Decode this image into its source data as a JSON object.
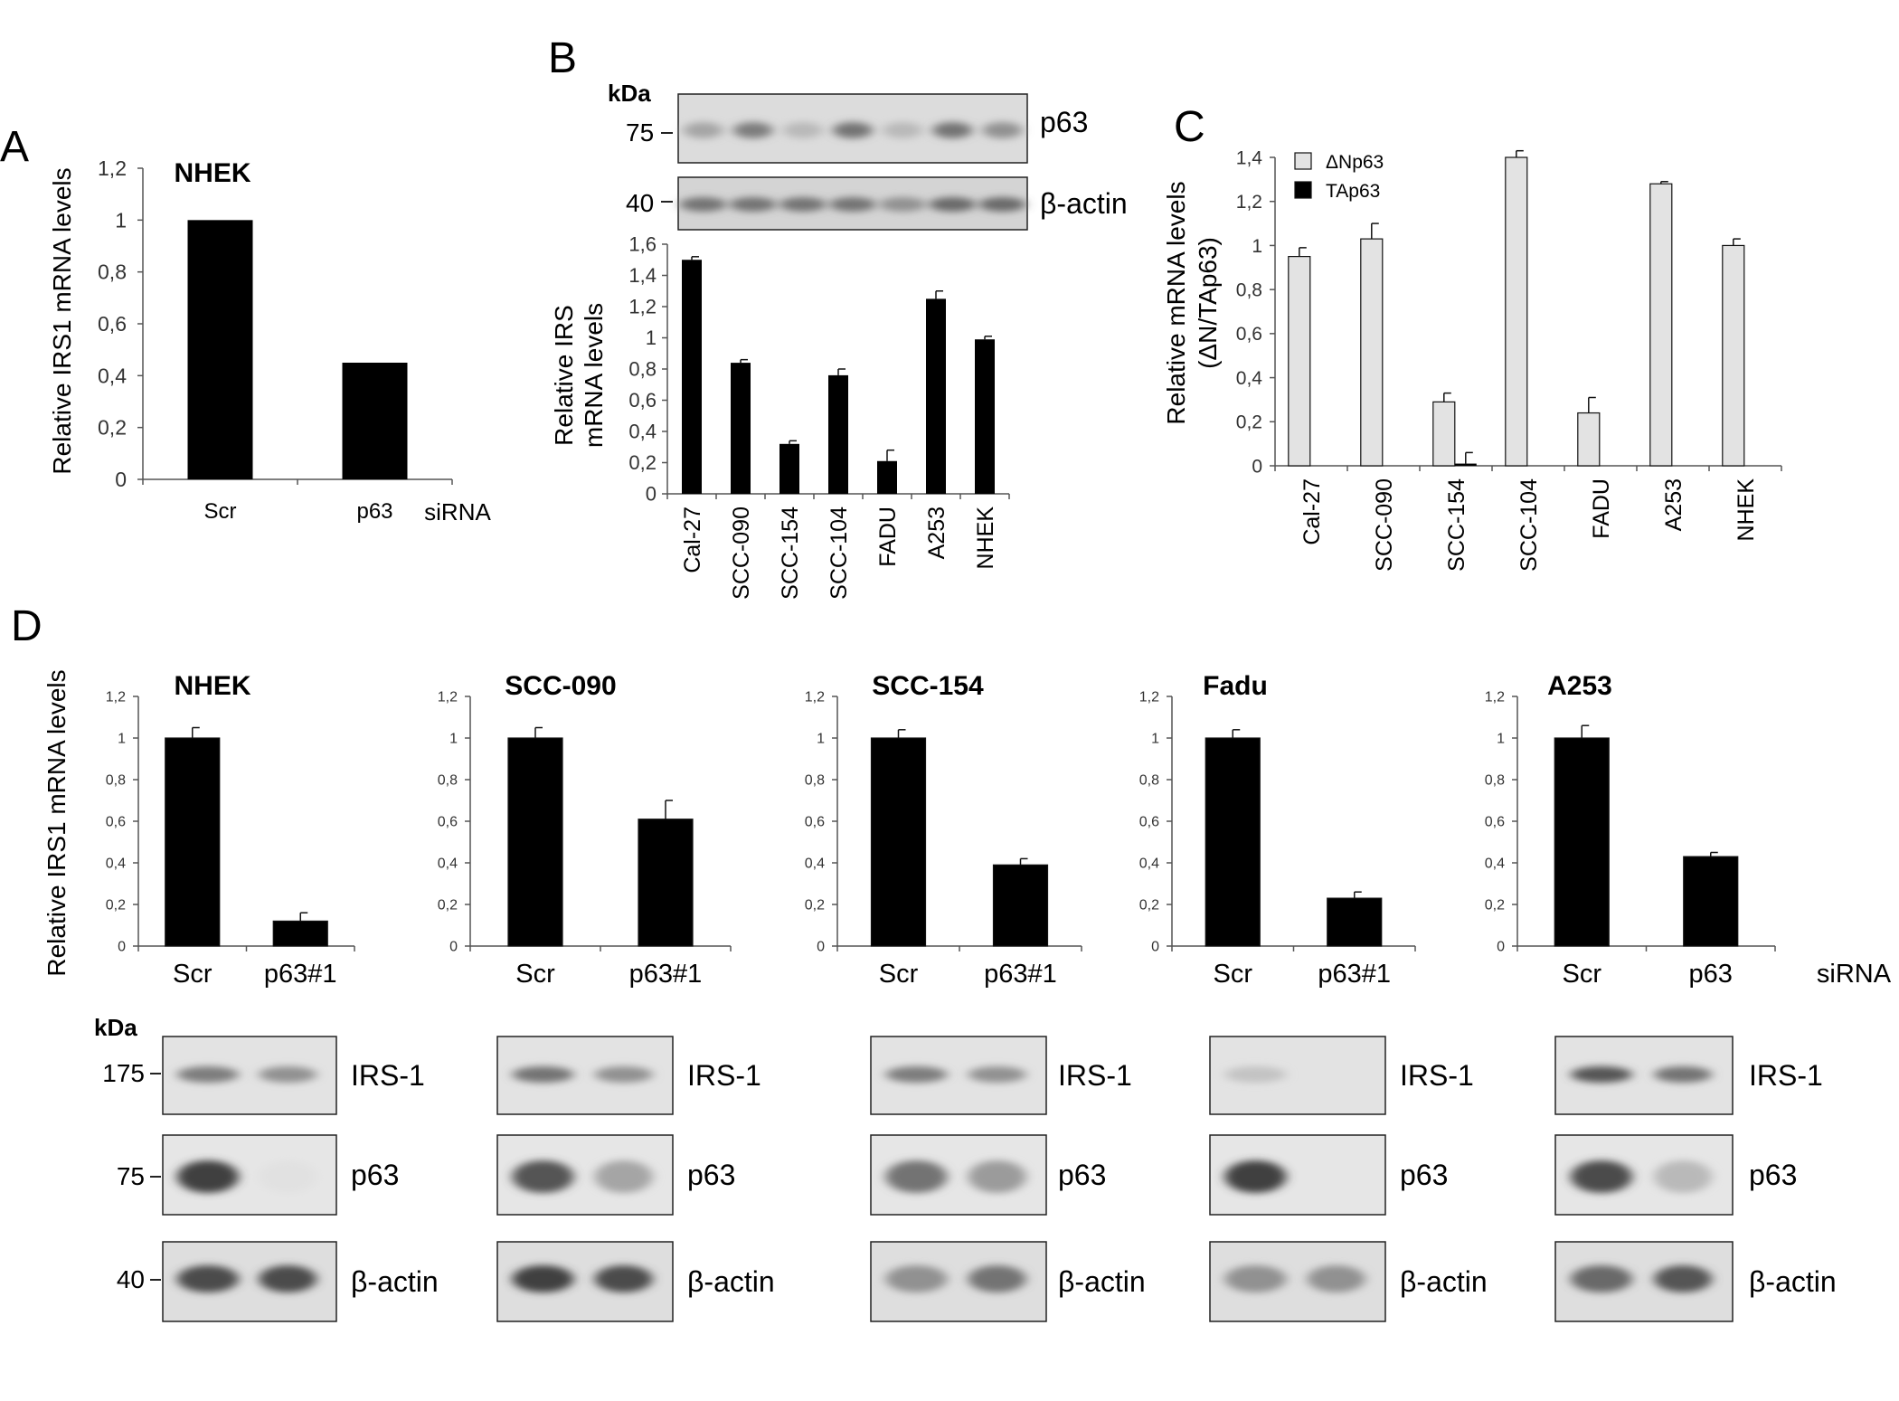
{
  "panel_labels": [
    "A",
    "B",
    "C",
    "D"
  ],
  "kda_label": "kDa",
  "chart_data": [
    {
      "id": "A",
      "type": "bar",
      "title": "NHEK",
      "categories": [
        "Scr",
        "p63"
      ],
      "values": [
        1.0,
        0.45
      ],
      "ylabel": "Relative IRS1 mRNA levels",
      "xlabel": "siRNA",
      "ylim": [
        0,
        1.2
      ],
      "yticks": [
        "0",
        "0,2",
        "0,4",
        "0,6",
        "0,8",
        "1",
        "1,2"
      ],
      "bar_color": "#000000"
    },
    {
      "id": "B",
      "type": "bar",
      "categories": [
        "Cal-27",
        "SCC-090",
        "SCC-154",
        "SCC-104",
        "FADU",
        "A253",
        "NHEK"
      ],
      "values": [
        1.5,
        0.84,
        0.32,
        0.76,
        0.21,
        1.25,
        0.99
      ],
      "errors": [
        0.02,
        0.02,
        0.02,
        0.04,
        0.07,
        0.05,
        0.02
      ],
      "ylabel_lines": [
        "Relative IRS",
        "mRNA levels"
      ],
      "ylim": [
        0,
        1.6
      ],
      "yticks": [
        "0",
        "0,2",
        "0,4",
        "0,6",
        "0,8",
        "1",
        "1,2",
        "1,4",
        "1,6"
      ],
      "bar_color": "#000000"
    },
    {
      "id": "C",
      "type": "bar",
      "categories": [
        "Cal-27",
        "SCC-090",
        "SCC-154",
        "SCC-104",
        "FADU",
        "A253",
        "NHEK"
      ],
      "series": [
        {
          "name": "ΔNp63",
          "values": [
            0.95,
            1.03,
            0.29,
            1.4,
            0.24,
            1.28,
            1.0
          ],
          "errors": [
            0.04,
            0.07,
            0.04,
            0.03,
            0.07,
            0.01,
            0.03
          ],
          "color": "#e3e3e3"
        },
        {
          "name": "TAp63",
          "values": [
            0,
            0,
            0.01,
            0,
            0,
            0,
            0
          ],
          "errors": [
            0,
            0,
            0.05,
            0,
            0,
            0,
            0
          ],
          "color": "#000000"
        }
      ],
      "ylabel_lines": [
        "Relative mRNA levels",
        "(ΔN/TAp63)"
      ],
      "ylim": [
        0,
        1.4
      ],
      "yticks": [
        "0",
        "0,2",
        "0,4",
        "0,6",
        "0,8",
        "1",
        "1,2",
        "1,4"
      ],
      "legend": "top-left"
    },
    {
      "id": "D-NHEK",
      "type": "bar",
      "title": "NHEK",
      "categories": [
        "Scr",
        "p63#1"
      ],
      "values": [
        1.0,
        0.12
      ],
      "errors": [
        0.05,
        0.04
      ],
      "ylim": [
        0,
        1.2
      ],
      "yticks": [
        "0",
        "0,2",
        "0,4",
        "0,6",
        "0,8",
        "1",
        "1,2"
      ]
    },
    {
      "id": "D-SCC-090",
      "type": "bar",
      "title": "SCC-090",
      "categories": [
        "Scr",
        "p63#1"
      ],
      "values": [
        1.0,
        0.61
      ],
      "errors": [
        0.05,
        0.09
      ],
      "ylim": [
        0,
        1.2
      ],
      "yticks": [
        "0",
        "0,2",
        "0,4",
        "0,6",
        "0,8",
        "1",
        "1,2"
      ]
    },
    {
      "id": "D-SCC-154",
      "type": "bar",
      "title": "SCC-154",
      "categories": [
        "Scr",
        "p63#1"
      ],
      "values": [
        1.0,
        0.39
      ],
      "errors": [
        0.04,
        0.03
      ],
      "ylim": [
        0,
        1.2
      ],
      "yticks": [
        "0",
        "0,2",
        "0,4",
        "0,6",
        "0,8",
        "1",
        "1,2"
      ]
    },
    {
      "id": "D-Fadu",
      "type": "bar",
      "title": "Fadu",
      "categories": [
        "Scr",
        "p63#1"
      ],
      "values": [
        1.0,
        0.23
      ],
      "errors": [
        0.04,
        0.03
      ],
      "ylim": [
        0,
        1.2
      ],
      "yticks": [
        "0",
        "0,2",
        "0,4",
        "0,6",
        "0,8",
        "1",
        "1,2"
      ]
    },
    {
      "id": "D-A253",
      "type": "bar",
      "title": "A253",
      "categories": [
        "Scr",
        "p63"
      ],
      "values": [
        1.0,
        0.43
      ],
      "errors": [
        0.06,
        0.02
      ],
      "ylim": [
        0,
        1.2
      ],
      "yticks": [
        "0",
        "0,2",
        "0,4",
        "0,6",
        "0,8",
        "1",
        "1,2"
      ],
      "xlabel": "siRNA"
    }
  ],
  "panel_D": {
    "ylabel": "Relative IRS1 mRNA levels"
  },
  "blots": {
    "B": {
      "rows": [
        {
          "label": "p63",
          "marker": "75"
        },
        {
          "label": "β-actin",
          "marker": "40"
        }
      ],
      "p63_intensity": [
        0.35,
        0.55,
        0.25,
        0.6,
        0.25,
        0.6,
        0.45
      ],
      "actin_intensity": [
        0.6,
        0.6,
        0.6,
        0.6,
        0.45,
        0.65,
        0.65
      ]
    },
    "D": {
      "markers": [
        "175",
        "75",
        "40"
      ],
      "row_labels": [
        "IRS-1",
        "p63",
        "β-actin"
      ],
      "lanes": [
        "Scr",
        "siRNA"
      ],
      "intensity": {
        "NHEK": {
          "irs1": [
            0.55,
            0.45
          ],
          "p63": [
            0.85,
            0.05
          ],
          "actin": [
            0.8,
            0.8
          ]
        },
        "SCC-090": {
          "irs1": [
            0.6,
            0.45
          ],
          "p63": [
            0.75,
            0.35
          ],
          "actin": [
            0.85,
            0.8
          ]
        },
        "SCC-154": {
          "irs1": [
            0.55,
            0.45
          ],
          "p63": [
            0.6,
            0.4
          ],
          "actin": [
            0.45,
            0.6
          ]
        },
        "Fadu": {
          "irs1": [
            0.2,
            0.0
          ],
          "p63": [
            0.85,
            0.0
          ],
          "actin": [
            0.45,
            0.45
          ]
        },
        "A253": {
          "irs1": [
            0.75,
            0.6
          ],
          "p63": [
            0.8,
            0.25
          ],
          "actin": [
            0.65,
            0.75
          ]
        }
      }
    }
  }
}
